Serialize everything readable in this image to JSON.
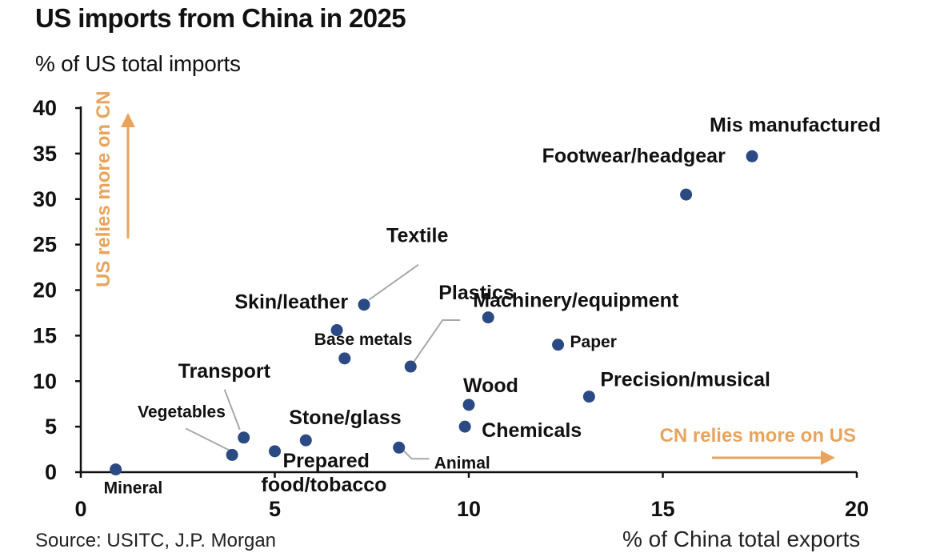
{
  "chart_data": {
    "type": "scatter",
    "title": "US imports from China in 2025",
    "ylabel": "% of US total imports",
    "xlabel": "% of China total exports",
    "source": "Source: USITC, J.P. Morgan",
    "xlim": [
      0,
      20
    ],
    "ylim": [
      0,
      40
    ],
    "xticks": [
      "0",
      "5",
      "10",
      "15",
      "20"
    ],
    "yticks": [
      "0",
      "5",
      "10",
      "15",
      "20",
      "25",
      "30",
      "35",
      "40"
    ],
    "grid": false,
    "point_color": "#2b4a84",
    "annotation_color": "#e8a45d",
    "annotations": {
      "y_arrow": "US relies more on CN",
      "x_arrow": "CN relies more on US"
    },
    "points": [
      {
        "label": "Mineral",
        "x": 0.9,
        "y": 0.3
      },
      {
        "label": "Vegetables",
        "x": 3.9,
        "y": 1.9
      },
      {
        "label": "Transport",
        "x": 4.2,
        "y": 3.8
      },
      {
        "label": "Prepared food/tobacco",
        "x": 5.0,
        "y": 2.3
      },
      {
        "label": "Stone/glass",
        "x": 5.8,
        "y": 3.5
      },
      {
        "label": "Animal",
        "x": 8.2,
        "y": 2.7
      },
      {
        "label": "Skin/leather",
        "x": 6.6,
        "y": 15.6
      },
      {
        "label": "Base metals",
        "x": 6.8,
        "y": 12.5
      },
      {
        "label": "Textile",
        "x": 7.3,
        "y": 18.4
      },
      {
        "label": "Plastics",
        "x": 8.5,
        "y": 11.6
      },
      {
        "label": "Machinery/equipment",
        "x": 10.5,
        "y": 17.0
      },
      {
        "label": "Chemicals",
        "x": 9.9,
        "y": 5.0
      },
      {
        "label": "Wood",
        "x": 10.0,
        "y": 7.4
      },
      {
        "label": "Paper",
        "x": 12.3,
        "y": 14.0
      },
      {
        "label": "Precision/musical",
        "x": 13.1,
        "y": 8.3
      },
      {
        "label": "Footwear/headgear",
        "x": 15.6,
        "y": 30.5
      },
      {
        "label": "Mis manufactured",
        "x": 17.3,
        "y": 34.7
      }
    ]
  }
}
